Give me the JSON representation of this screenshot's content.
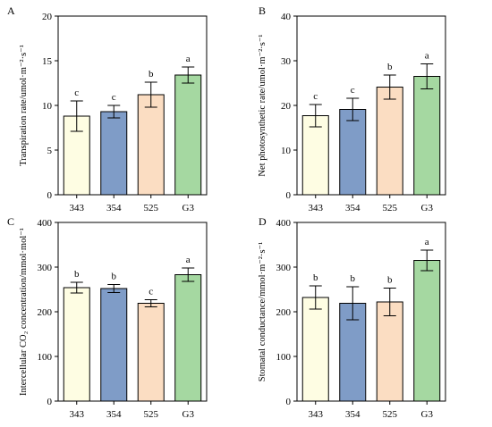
{
  "colors": [
    "#fefde3",
    "#7f9cc7",
    "#fbddc2",
    "#a5d8a1"
  ],
  "chart_data": [
    {
      "panel": "A",
      "type": "bar",
      "categories": [
        "343",
        "354",
        "525",
        "G3"
      ],
      "values": [
        8.8,
        9.3,
        11.2,
        13.4
      ],
      "errors": [
        1.7,
        0.7,
        1.4,
        0.9
      ],
      "letters": [
        "c",
        "c",
        "b",
        "a"
      ],
      "ylabel": "Transpiration rate/umol·m⁻²·s⁻¹",
      "ylim": [
        0,
        20
      ],
      "yticks": [
        0,
        5,
        10,
        15,
        20
      ]
    },
    {
      "panel": "B",
      "type": "bar",
      "categories": [
        "343",
        "354",
        "525",
        "G3"
      ],
      "values": [
        17.7,
        19.1,
        24.1,
        26.5
      ],
      "errors": [
        2.5,
        2.5,
        2.7,
        2.8
      ],
      "letters": [
        "c",
        "c",
        "b",
        "a"
      ],
      "ylabel": "Net photosynthetic rate/umol·m⁻²·s⁻¹",
      "ylim": [
        0,
        40
      ],
      "yticks": [
        0,
        10,
        20,
        30,
        40
      ]
    },
    {
      "panel": "C",
      "type": "bar",
      "categories": [
        "343",
        "354",
        "525",
        "G3"
      ],
      "values": [
        254,
        252,
        219,
        283
      ],
      "errors": [
        12,
        9,
        8,
        15
      ],
      "letters": [
        "b",
        "b",
        "c",
        "a"
      ],
      "ylabel": "Intercellular CO₂ concentration/mmol·mol⁻¹",
      "ylim": [
        0,
        400
      ],
      "yticks": [
        0,
        100,
        200,
        300,
        400
      ]
    },
    {
      "panel": "D",
      "type": "bar",
      "categories": [
        "343",
        "354",
        "525",
        "G3"
      ],
      "values": [
        232,
        219,
        222,
        315
      ],
      "errors": [
        26,
        37,
        31,
        23
      ],
      "letters": [
        "b",
        "b",
        "b",
        "a"
      ],
      "ylabel": "Stomatal conductance/mmol·m⁻²·s⁻¹",
      "ylim": [
        0,
        400
      ],
      "yticks": [
        0,
        100,
        200,
        300,
        400
      ]
    }
  ]
}
